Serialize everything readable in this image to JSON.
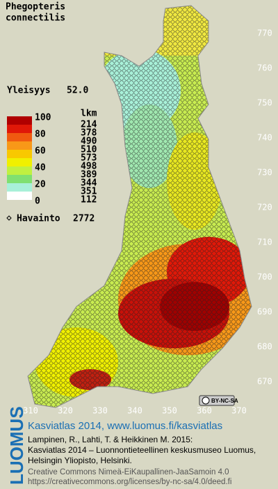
{
  "species": [
    "Phegopteris",
    "connectilis"
  ],
  "frequency": {
    "label": "Yleisyys",
    "value": "52.0"
  },
  "legend": {
    "count_header": "lkm",
    "scale_labels": [
      100,
      80,
      60,
      40,
      20,
      0
    ],
    "counts": [
      214,
      378,
      490,
      510,
      573,
      498,
      389,
      344,
      351,
      112
    ],
    "colors": [
      "#b00000",
      "#e01808",
      "#f05a10",
      "#f89818",
      "#f8c800",
      "#f0f000",
      "#c0f040",
      "#80e070",
      "#a8f0d8",
      "#ffffff"
    ]
  },
  "observations": {
    "label": "Havainto",
    "value": 2772
  },
  "grid": {
    "y_labels": [
      770,
      760,
      750,
      740,
      730,
      720,
      710,
      700,
      690,
      680,
      670
    ],
    "x_labels": [
      310,
      320,
      330,
      340,
      350,
      360,
      370
    ]
  },
  "license_badge": "BY-NC-SA",
  "publisher": "LUOMUS",
  "footer": {
    "heading": "Kasviatlas 2014, www.luomus.fi/kasviatlas",
    "citation": [
      "Lampinen, R., Lahti, T. & Heikkinen M. 2015:",
      "Kasviatlas 2014 – Luonnontieteellinen keskusmuseo Luomus,",
      "Helsingin Yliopisto, Helsinki."
    ],
    "license": [
      "Creative Commons Nimeä-EiKaupallinen-JaaSamoin 4.0",
      "https://creativecommons.org/licenses/by-nc-sa/4.0/deed.fi"
    ]
  }
}
